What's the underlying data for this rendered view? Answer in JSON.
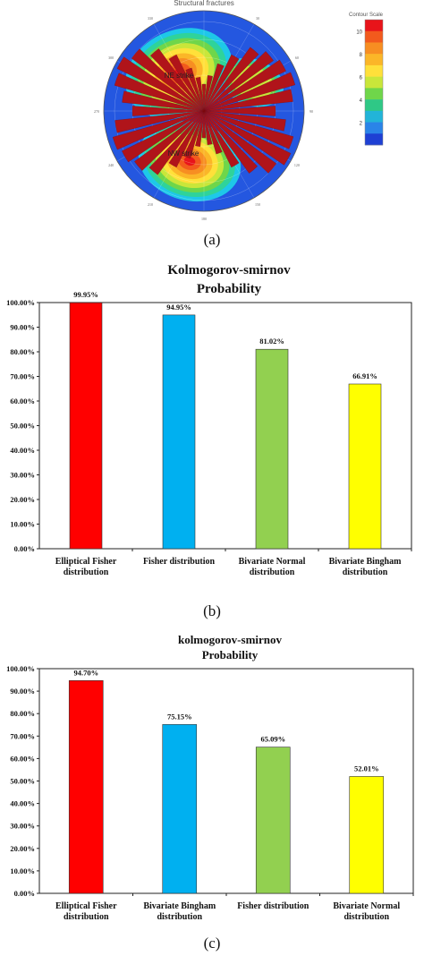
{
  "panel_a": {
    "title": "Structural fractures",
    "contour_scale": {
      "label": "Contour Scale",
      "ticks": [
        "10",
        "8",
        "6",
        "4",
        "2"
      ],
      "colors": [
        "#e8141a",
        "#f25a1d",
        "#f78e22",
        "#fbb628",
        "#ffe03a",
        "#c9e63a",
        "#6fd64a",
        "#2fc886",
        "#22b4d8",
        "#2a84e8",
        "#1e40d4"
      ]
    },
    "labels": {
      "ne": "NE strike",
      "nw": "NW strike"
    },
    "azimuth_labels": [
      "330",
      "30",
      "300",
      "60",
      "270",
      "90",
      "240",
      "120",
      "210",
      "150",
      "180"
    ],
    "colors": {
      "background": "#2457e0",
      "rose": "#b0141a"
    },
    "caption": "(a)"
  },
  "panel_b": {
    "caption": "(b)"
  },
  "panel_c": {
    "caption": "(c)"
  },
  "chart_data": [
    {
      "type": "bar",
      "title": "Kolmogorov-smirnov Probability",
      "title_lines": [
        "Kolmogorov-smirnov",
        "Probability"
      ],
      "categories": [
        [
          "Elliptical Fisher",
          "distribution"
        ],
        [
          "Fisher distribution"
        ],
        [
          "Bivariate Normal",
          "distribution"
        ],
        [
          "Bivariate Bingham",
          "distribution"
        ]
      ],
      "values": [
        99.95,
        94.95,
        81.02,
        66.91
      ],
      "value_labels": [
        "99.95%",
        "94.95%",
        "81.02%",
        "66.91%"
      ],
      "colors": [
        "#ff0000",
        "#00b0f0",
        "#92d050",
        "#ffff00"
      ],
      "ylim": [
        0,
        100
      ],
      "yticks": [
        "0.00%",
        "10.00%",
        "20.00%",
        "30.00%",
        "40.00%",
        "50.00%",
        "60.00%",
        "70.00%",
        "80.00%",
        "90.00%",
        "100.00%"
      ],
      "grid": false,
      "xlabel": "",
      "ylabel": ""
    },
    {
      "type": "bar",
      "title": "kolmogorov-smirnov Probability",
      "title_lines": [
        "kolmogorov-smirnov",
        "Probability"
      ],
      "categories": [
        [
          "Elliptical Fisher",
          "distribution"
        ],
        [
          "Bivariate Bingham",
          "distribution"
        ],
        [
          "Fisher distribution"
        ],
        [
          "Bivariate Normal",
          "distribution"
        ]
      ],
      "values": [
        94.7,
        75.15,
        65.09,
        52.01
      ],
      "value_labels": [
        "94.70%",
        "75.15%",
        "65.09%",
        "52.01%"
      ],
      "colors": [
        "#ff0000",
        "#00b0f0",
        "#92d050",
        "#ffff00"
      ],
      "ylim": [
        0,
        100
      ],
      "yticks": [
        "0.00%",
        "10.00%",
        "20.00%",
        "30.00%",
        "40.00%",
        "50.00%",
        "60.00%",
        "70.00%",
        "80.00%",
        "90.00%",
        "100.00%"
      ],
      "grid": false,
      "xlabel": "",
      "ylabel": ""
    }
  ]
}
